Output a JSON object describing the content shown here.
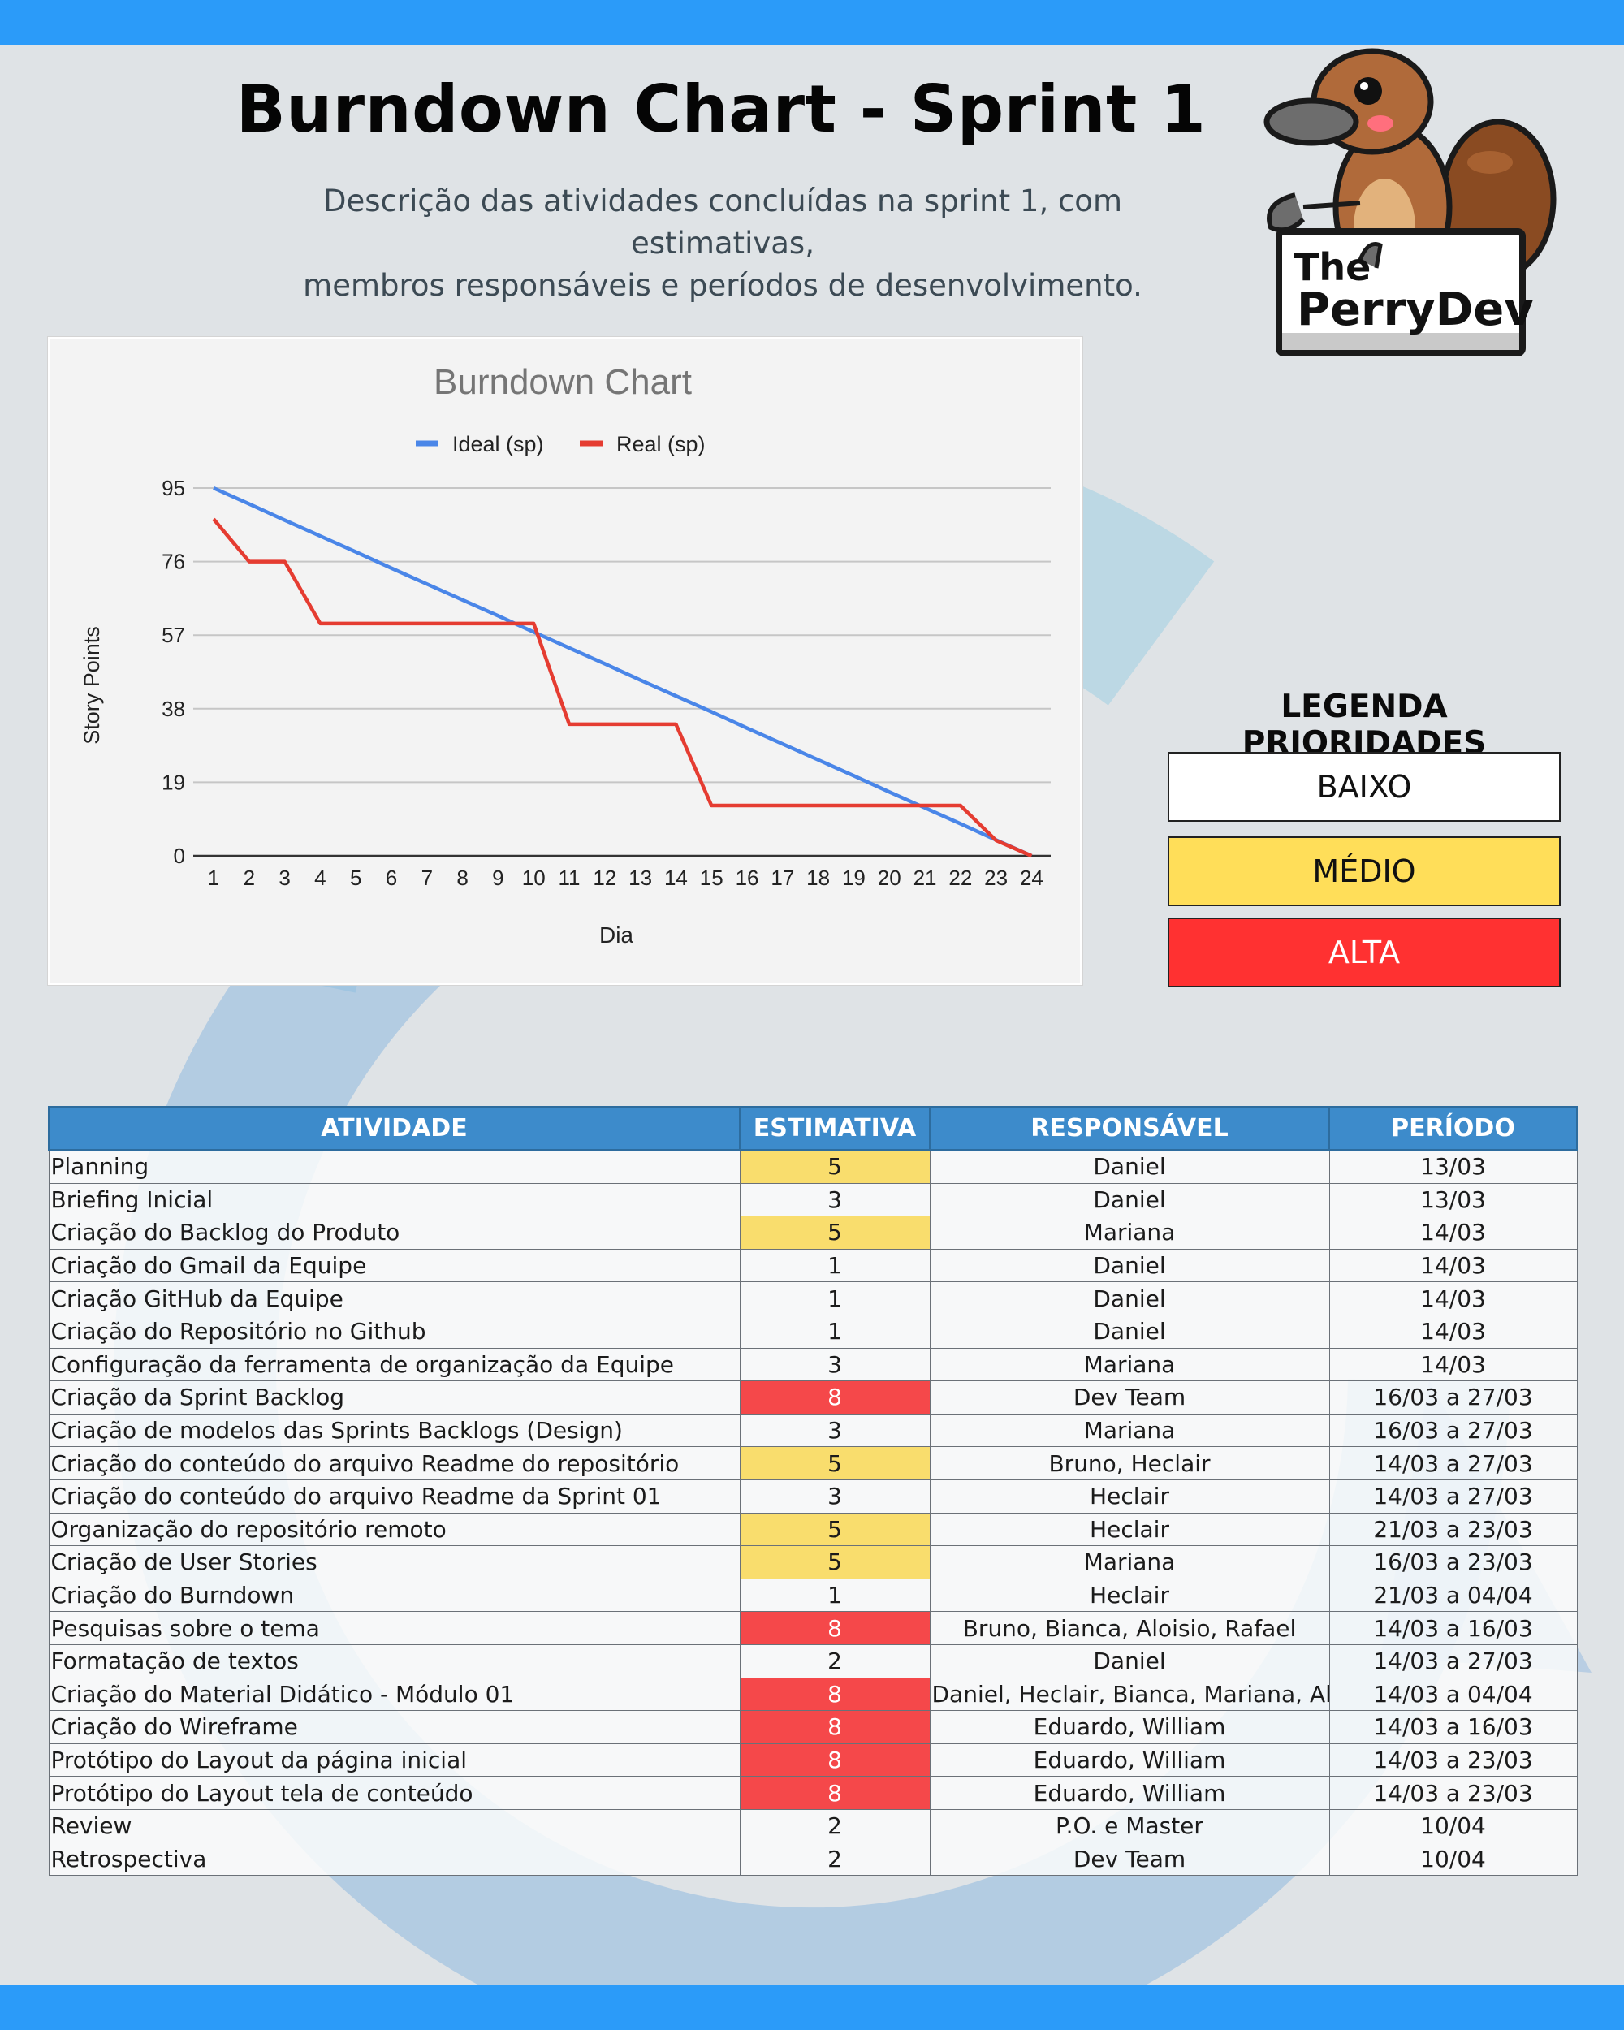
{
  "header": {
    "title": "Burndown Chart - Sprint 1",
    "subtitle_line1": "Descrição das atividades concluídas na sprint 1, com estimativas,",
    "subtitle_line2": "membros responsáveis e períodos de desenvolvimento."
  },
  "logo": {
    "line1": "The",
    "line2": "PerryDev"
  },
  "chart_data": {
    "type": "line",
    "title": "Burndown Chart",
    "xlabel": "Dia",
    "ylabel": "Story Points",
    "x": [
      1,
      2,
      3,
      4,
      5,
      6,
      7,
      8,
      9,
      10,
      11,
      12,
      13,
      14,
      15,
      16,
      17,
      18,
      19,
      20,
      21,
      22,
      23,
      24
    ],
    "y_ticks": [
      0,
      19,
      38,
      57,
      76,
      95
    ],
    "ylim": [
      0,
      95
    ],
    "legend_position": "top",
    "grid": true,
    "series": [
      {
        "name": "Ideal (sp)",
        "color": "#4a86e8",
        "values": [
          95,
          90.9,
          86.7,
          82.6,
          78.5,
          74.3,
          70.2,
          66.1,
          62.0,
          57.8,
          53.7,
          49.6,
          45.4,
          41.3,
          37.2,
          33.0,
          28.9,
          24.8,
          20.7,
          16.5,
          12.4,
          8.3,
          4.1,
          0
        ]
      },
      {
        "name": "Real (sp)",
        "color": "#e53c31",
        "values": [
          87,
          76,
          76,
          60,
          60,
          60,
          60,
          60,
          60,
          60,
          34,
          34,
          34,
          34,
          13,
          13,
          13,
          13,
          13,
          13,
          13,
          13,
          4,
          0
        ]
      }
    ]
  },
  "legend": {
    "title": "LEGENDA PRIORIDADES",
    "low": "BAIXO",
    "mid": "MÉDIO",
    "high": "ALTA",
    "colors": {
      "low": "#ffffff",
      "mid": "#ffde59",
      "high": "#ff3131"
    }
  },
  "table": {
    "headers": [
      "ATIVIDADE",
      "ESTIMATIVA",
      "RESPONSÁVEL",
      "PERÍODO"
    ],
    "rows": [
      {
        "atividade": "Planning",
        "estimativa": "5",
        "responsavel": "Daniel",
        "periodo": "13/03",
        "prioridade": "medio"
      },
      {
        "atividade": "Briefing Inicial",
        "estimativa": "3",
        "responsavel": "Daniel",
        "periodo": "13/03",
        "prioridade": "baixo"
      },
      {
        "atividade": "Criação do Backlog  do Produto",
        "estimativa": "5",
        "responsavel": "Mariana",
        "periodo": "14/03",
        "prioridade": "medio"
      },
      {
        "atividade": "Criação do Gmail da Equipe",
        "estimativa": "1",
        "responsavel": "Daniel",
        "periodo": "14/03",
        "prioridade": "baixo"
      },
      {
        "atividade": "Criação GitHub da Equipe",
        "estimativa": "1",
        "responsavel": "Daniel",
        "periodo": "14/03",
        "prioridade": "baixo"
      },
      {
        "atividade": "Criação do Repositório no Github",
        "estimativa": "1",
        "responsavel": "Daniel",
        "periodo": "14/03",
        "prioridade": "baixo"
      },
      {
        "atividade": "Configuração da ferramenta de organização da Equipe",
        "estimativa": "3",
        "responsavel": "Mariana",
        "periodo": "14/03",
        "prioridade": "baixo"
      },
      {
        "atividade": "Criação da Sprint Backlog",
        "estimativa": "8",
        "responsavel": "Dev Team",
        "periodo": "16/03 a 27/03",
        "prioridade": "alta"
      },
      {
        "atividade": "Criação de modelos das Sprints Backlogs (Design)",
        "estimativa": "3",
        "responsavel": "Mariana",
        "periodo": "16/03 a 27/03",
        "prioridade": "baixo"
      },
      {
        "atividade": "Criação do conteúdo do arquivo Readme do repositório",
        "estimativa": "5",
        "responsavel": "Bruno, Heclair",
        "periodo": "14/03 a 27/03",
        "prioridade": "medio"
      },
      {
        "atividade": "Criação do conteúdo do arquivo Readme da Sprint 01",
        "estimativa": "3",
        "responsavel": "Heclair",
        "periodo": "14/03 a 27/03",
        "prioridade": "baixo"
      },
      {
        "atividade": "Organização do repositório remoto",
        "estimativa": "5",
        "responsavel": "Heclair",
        "periodo": "21/03 a 23/03",
        "prioridade": "medio"
      },
      {
        "atividade": "Criação de User Stories",
        "estimativa": "5",
        "responsavel": "Mariana",
        "periodo": "16/03 a 23/03",
        "prioridade": "medio"
      },
      {
        "atividade": "Criação do Burndown",
        "estimativa": "1",
        "responsavel": "Heclair",
        "periodo": "21/03 a 04/04",
        "prioridade": "baixo"
      },
      {
        "atividade": "Pesquisas sobre o tema",
        "estimativa": "8",
        "responsavel": "Bruno, Bianca, Aloisio, Rafael",
        "periodo": "14/03 a 16/03",
        "prioridade": "alta"
      },
      {
        "atividade": "Formatação de textos",
        "estimativa": "2",
        "responsavel": "Daniel",
        "periodo": "14/03 a 27/03",
        "prioridade": "baixo"
      },
      {
        "atividade": "Criação do Material Didático - Módulo 01",
        "estimativa": "8",
        "responsavel": "Daniel, Heclair, Bianca, Mariana, Aloisio",
        "periodo": "14/03 a 04/04",
        "prioridade": "alta"
      },
      {
        "atividade": "Criação do Wireframe",
        "estimativa": "8",
        "responsavel": "Eduardo, William",
        "periodo": "14/03 a 16/03",
        "prioridade": "alta"
      },
      {
        "atividade": "Protótipo do Layout da página inicial",
        "estimativa": "8",
        "responsavel": "Eduardo, William",
        "periodo": "14/03 a 23/03",
        "prioridade": "alta"
      },
      {
        "atividade": "Protótipo do Layout tela de conteúdo",
        "estimativa": "8",
        "responsavel": "Eduardo, William",
        "periodo": "14/03 a 23/03",
        "prioridade": "alta"
      },
      {
        "atividade": "Review",
        "estimativa": "2",
        "responsavel": "P.O. e Master",
        "periodo": "10/04",
        "prioridade": "baixo"
      },
      {
        "atividade": "Retrospectiva",
        "estimativa": "2",
        "responsavel": "Dev Team",
        "periodo": "10/04",
        "prioridade": "baixo"
      }
    ]
  }
}
